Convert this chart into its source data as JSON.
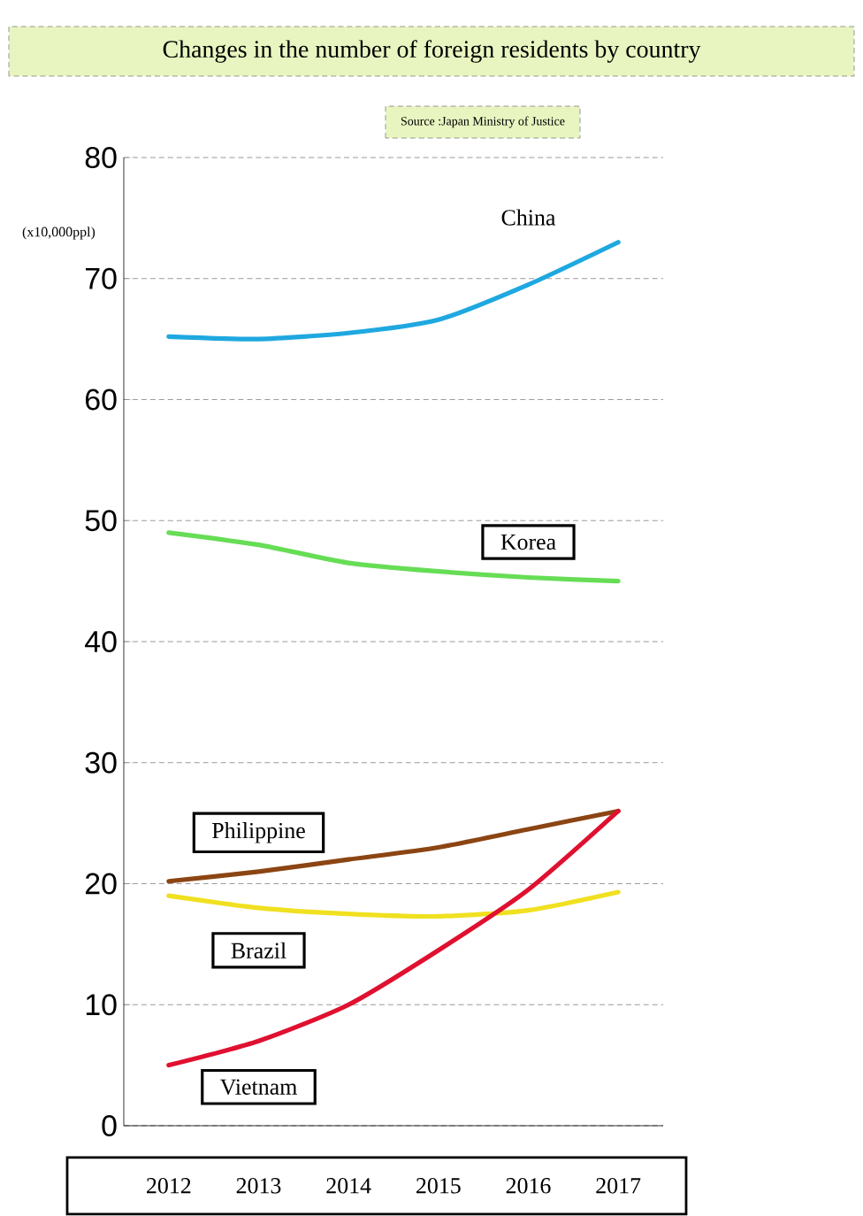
{
  "chart_data": {
    "type": "line",
    "title": "Changes in the number of foreign residents by country",
    "ylabel": "(x10,000ppl)",
    "annotations": [
      "Source :Japan Ministry of Justice"
    ],
    "categories": [
      "2012",
      "2013",
      "2014",
      "2015",
      "2016",
      "2017"
    ],
    "series": [
      {
        "name": "China",
        "color": "#1fa8e0",
        "values": [
          65.2,
          65.0,
          65.5,
          66.6,
          69.5,
          73.0
        ]
      },
      {
        "name": "Korea",
        "color": "#66dd55",
        "values": [
          49.0,
          48.0,
          46.5,
          45.8,
          45.3,
          45.0
        ]
      },
      {
        "name": "Philippine",
        "color": "#8b4513",
        "values": [
          20.2,
          21.0,
          22.0,
          23.0,
          24.5,
          26.0
        ]
      },
      {
        "name": "Brazil",
        "color": "#f0e020",
        "values": [
          19.0,
          18.0,
          17.5,
          17.3,
          17.8,
          19.3
        ]
      },
      {
        "name": "Vietnam",
        "color": "#e01030",
        "values": [
          5.0,
          7.0,
          10.0,
          14.5,
          19.5,
          26.0
        ]
      }
    ],
    "ylim": [
      0,
      80
    ],
    "yticks": [
      0,
      10,
      20,
      30,
      40,
      50,
      60,
      70,
      80
    ],
    "grid": "y"
  }
}
